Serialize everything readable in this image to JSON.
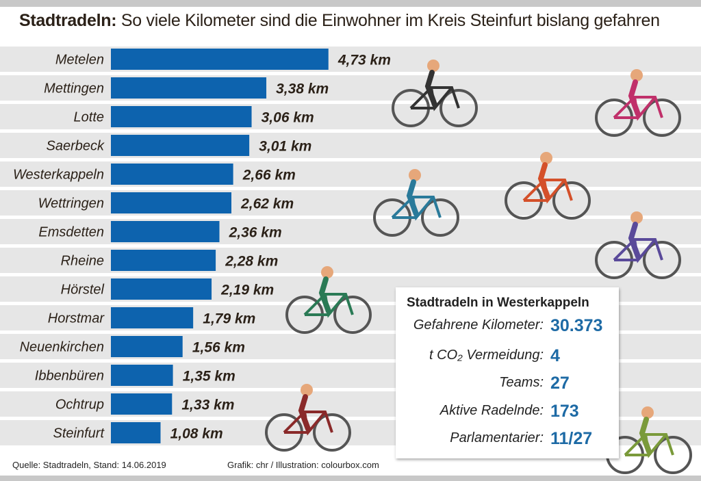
{
  "title": {
    "bold": "Stadtradeln:",
    "rest": "So viele Kilometer sind die Einwohner im Kreis Steinfurt bislang gefahren"
  },
  "colors": {
    "bar": "#0d63ae",
    "stripe": "#e6e6e6",
    "band": "#c8c8c8",
    "info_value": "#1d6aa5"
  },
  "chart_data": {
    "type": "bar",
    "orientation": "horizontal",
    "title": "Stadtradeln: So viele Kilometer sind die Einwohner im Kreis Steinfurt bislang gefahren",
    "categories": [
      "Metelen",
      "Mettingen",
      "Lotte",
      "Saerbeck",
      "Westerkappeln",
      "Wettringen",
      "Emsdetten",
      "Rheine",
      "Hörstel",
      "Horstmar",
      "Neuenkirchen",
      "Ibbenbüren",
      "Ochtrup",
      "Steinfurt"
    ],
    "values": [
      4.73,
      3.38,
      3.06,
      3.01,
      2.66,
      2.62,
      2.36,
      2.28,
      2.19,
      1.79,
      1.56,
      1.35,
      1.33,
      1.08
    ],
    "data_labels": [
      "4,73 km",
      "3,38 km",
      "3,06 km",
      "3,01 km",
      "2,66 km",
      "2,62 km",
      "2,36 km",
      "2,28 km",
      "2,19 km",
      "1,79 km",
      "1,56 km",
      "1,35 km",
      "1,33 km",
      "1,08 km"
    ],
    "unit": "km",
    "grid": false
  },
  "infobox": {
    "title": "Stadtradeln in Westerkappeln",
    "rows": [
      {
        "label": "Gefahrene Kilometer:",
        "value": "30.373"
      },
      {
        "label": "t CO₂ Vermeidung:",
        "value": "4"
      },
      {
        "label": "Teams:",
        "value": "27"
      },
      {
        "label": "Aktive Radelnde:",
        "value": "173"
      },
      {
        "label": "Parlamentarier:",
        "value": "11/27"
      }
    ]
  },
  "footer": {
    "source": "Quelle: Stadtradeln, Stand: 14.06.2019",
    "credit": "Grafik: chr / Illustration: colourbox.com"
  }
}
